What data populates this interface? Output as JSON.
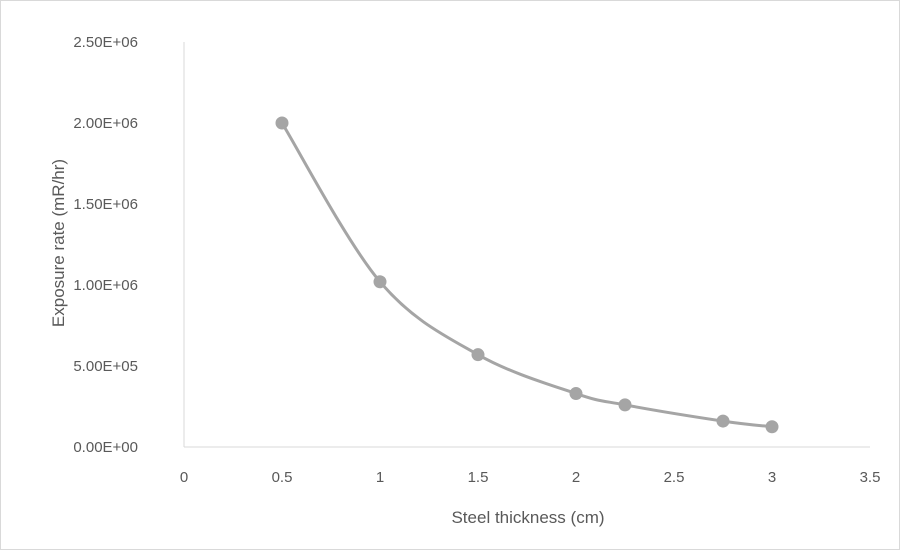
{
  "chart_data": {
    "type": "line",
    "title": "",
    "xlabel": "Steel thickness (cm)",
    "ylabel": "Exposure rate (mR/hr)",
    "xlim": [
      0,
      3.5
    ],
    "ylim": [
      0,
      2500000
    ],
    "x_ticks": [
      "0",
      "0.5",
      "1",
      "1.5",
      "2",
      "2.5",
      "3",
      "3.5"
    ],
    "y_ticks": [
      "0.00E+00",
      "5.00E+05",
      "1.00E+06",
      "1.50E+06",
      "2.00E+06",
      "2.50E+06"
    ],
    "grid": false,
    "legend": "none",
    "series": [
      {
        "x": [
          0.5,
          1.0,
          1.5,
          2.0,
          2.25,
          2.75,
          3.0
        ],
        "y": [
          2000000,
          1020000,
          570000,
          330000,
          260000,
          160000,
          125000
        ],
        "color": "#a5a5a5"
      }
    ]
  }
}
